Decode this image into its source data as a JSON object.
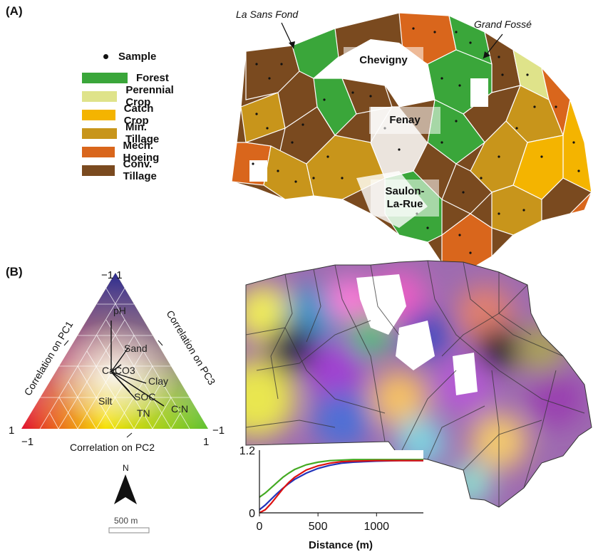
{
  "panels": {
    "a_label": "(A)",
    "b_label": "(B)"
  },
  "legend": {
    "sample_label": "Sample",
    "items": [
      {
        "label": "Forest",
        "color": "#3aa63a"
      },
      {
        "label": "Perennial Crop",
        "color": "#dfe38a"
      },
      {
        "label": "Catch Crop",
        "color": "#f4b400"
      },
      {
        "label": "Min. Tillage",
        "color": "#c8951b"
      },
      {
        "label": "Mech. Hoeing",
        "color": "#d9661c"
      },
      {
        "label": "Conv. Tillage",
        "color": "#7a4a1f"
      }
    ]
  },
  "map_a": {
    "features": {
      "la_sans_fond": "La Sans Fond",
      "grand_fosse": "Grand Fossé"
    },
    "towns": {
      "chevigny": "Chevigny",
      "fenay": "Fenay",
      "saulon_1": "Saulon-",
      "saulon_2": "La-Rue"
    }
  },
  "ternary": {
    "corner_top": "−1 1",
    "corner_left_1": "1",
    "corner_left_2": "−1",
    "corner_right_1": "−1",
    "corner_right_2": "1",
    "axis_pc1": "Correlation on PC1",
    "axis_pc2": "Correlation on PC2",
    "axis_pc3": "Correlation on PC3",
    "variables": [
      "pH",
      "Sand",
      "CaCO3",
      "Clay",
      "Silt",
      "SOC",
      "TN",
      "C:N"
    ]
  },
  "north": {
    "label": "N"
  },
  "scale_bar": {
    "label": "500 m"
  },
  "chart_data": {
    "type": "line",
    "title": "",
    "xlabel": "Distance (m)",
    "ylabel": "",
    "xlim": [
      0,
      1400
    ],
    "ylim": [
      0,
      1.2
    ],
    "x_ticks": [
      "0",
      "500",
      "1000"
    ],
    "y_ticks": [
      "0",
      "1.2"
    ],
    "x": [
      0,
      50,
      100,
      150,
      200,
      250,
      300,
      400,
      500,
      600,
      700,
      800,
      1000,
      1200,
      1400
    ],
    "series": [
      {
        "color": "#44aa22",
        "values": [
          0.3,
          0.38,
          0.48,
          0.58,
          0.68,
          0.76,
          0.83,
          0.92,
          0.97,
          1.0,
          1.01,
          1.02,
          1.02,
          1.02,
          1.02
        ]
      },
      {
        "color": "#2233bb",
        "values": [
          0.06,
          0.15,
          0.26,
          0.37,
          0.47,
          0.56,
          0.64,
          0.76,
          0.85,
          0.91,
          0.95,
          0.97,
          0.99,
          1.0,
          1.0
        ]
      },
      {
        "color": "#dd1111",
        "values": [
          0.0,
          0.06,
          0.18,
          0.32,
          0.46,
          0.58,
          0.68,
          0.82,
          0.9,
          0.95,
          0.98,
          0.99,
          1.0,
          1.0,
          1.0
        ]
      }
    ]
  }
}
